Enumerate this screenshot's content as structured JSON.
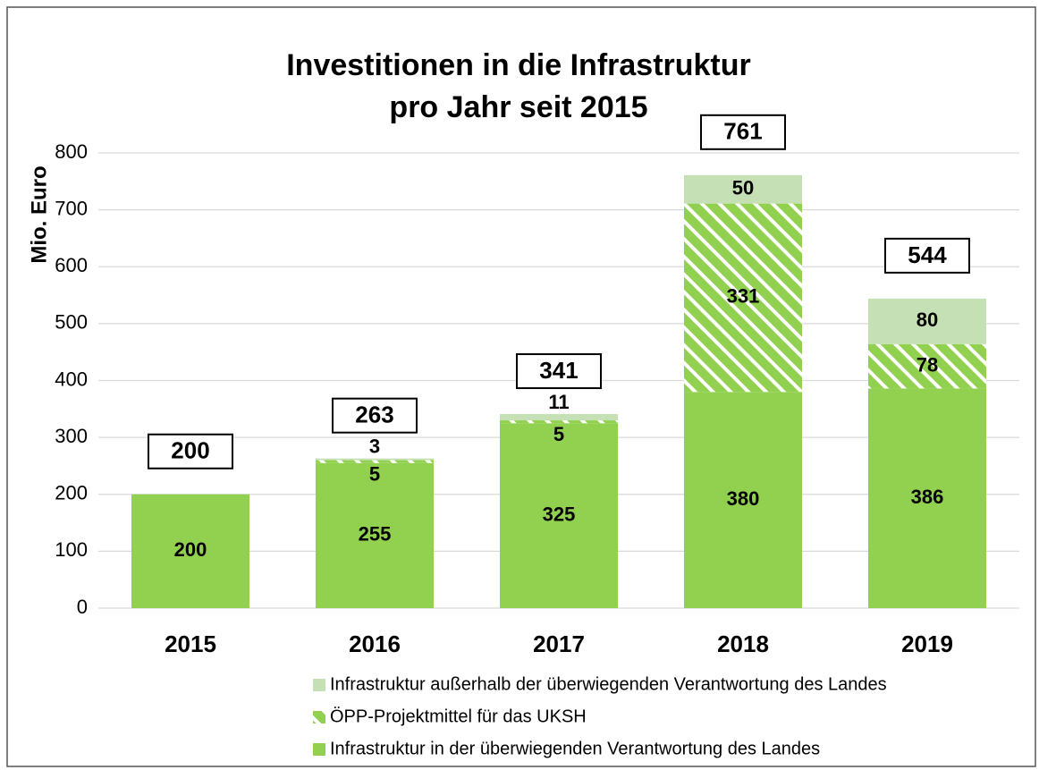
{
  "chart_data": {
    "type": "stacked_bar",
    "title": [
      "Investitionen in die Infrastruktur",
      "pro Jahr seit 2015"
    ],
    "y_label": "Mio. Euro",
    "categories": [
      "2015",
      "2016",
      "2017",
      "2018",
      "2019"
    ],
    "series": [
      {
        "name": "Infrastruktur in der überwiegenden Verantwortung des Landes",
        "color": "#92d050",
        "pattern": "solid",
        "values": [
          200,
          255,
          325,
          380,
          386
        ]
      },
      {
        "name": "ÖPP-Projektmittel für das UKSH",
        "color": "#92d050",
        "pattern": "hatch",
        "values": [
          null,
          5,
          5,
          331,
          78
        ]
      },
      {
        "name": "Infrastruktur außerhalb der überwiegenden Verantwortung des Landes",
        "color": "#c5e0b4",
        "pattern": "solid",
        "values": [
          null,
          3,
          11,
          50,
          80
        ]
      }
    ],
    "totals": [
      200,
      263,
      341,
      761,
      544
    ],
    "ylim": [
      0,
      800
    ],
    "yticks": [
      0,
      100,
      200,
      300,
      400,
      500,
      600,
      700,
      800
    ],
    "grid": true
  }
}
